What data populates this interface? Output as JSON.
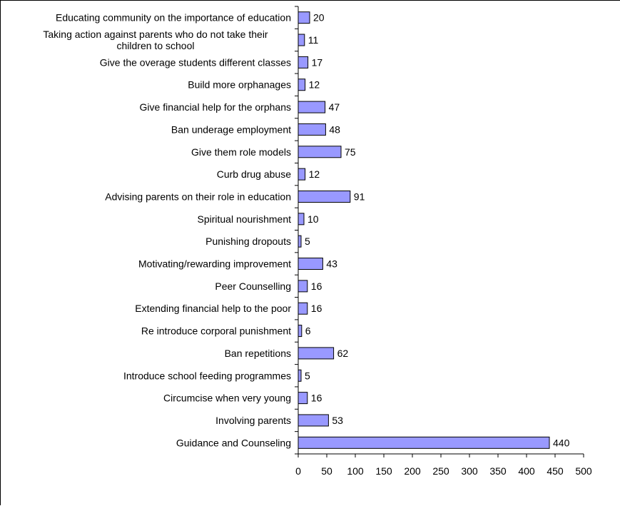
{
  "chart_data": {
    "type": "bar",
    "orientation": "horizontal",
    "title": "",
    "xlabel": "",
    "ylabel": "",
    "xlim": [
      0,
      500
    ],
    "x_ticks": [
      "0",
      "50",
      "100",
      "150",
      "200",
      "250",
      "300",
      "350",
      "400",
      "450",
      "500"
    ],
    "grid": false,
    "legend": "none",
    "bar_color": "#9999ff",
    "bar_edge_color": "#000000",
    "categories": [
      [
        "Educating community on the importance of education"
      ],
      [
        "Taking action against parents who do not take their",
        "children to school"
      ],
      [
        "Give the overage students different classes"
      ],
      [
        "Build more orphanages"
      ],
      [
        "Give financial help for the orphans"
      ],
      [
        "Ban underage employment"
      ],
      [
        "Give them role models"
      ],
      [
        "Curb drug abuse"
      ],
      [
        "Advising parents on their role in education"
      ],
      [
        "Spiritual nourishment"
      ],
      [
        "Punishing dropouts"
      ],
      [
        "Motivating/rewarding improvement"
      ],
      [
        "Peer Counselling"
      ],
      [
        "Extending financial help to the poor"
      ],
      [
        "Re introduce corporal punishment"
      ],
      [
        "Ban repetitions"
      ],
      [
        "Introduce school feeding programmes"
      ],
      [
        "Circumcise when very young"
      ],
      [
        "Involving parents"
      ],
      [
        "Guidance and Counseling"
      ]
    ],
    "values": [
      20,
      11,
      17,
      12,
      47,
      48,
      75,
      12,
      91,
      10,
      5,
      43,
      16,
      16,
      6,
      62,
      5,
      16,
      53,
      440
    ],
    "value_labels": [
      "20",
      "11",
      "17",
      "12",
      "47",
      "48",
      "75",
      "12",
      "91",
      "10",
      "5",
      "43",
      "16",
      "16",
      "6",
      "62",
      "5",
      "16",
      "53",
      "440"
    ]
  }
}
